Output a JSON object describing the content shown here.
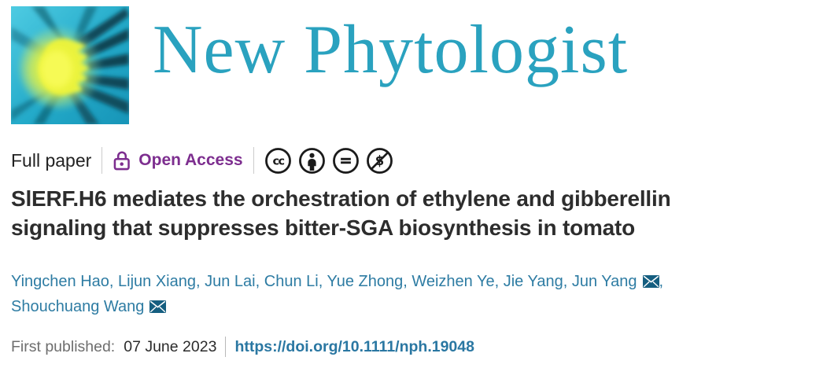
{
  "journal": {
    "name": "New Phytologist"
  },
  "colors": {
    "brand_teal": "#2aa2bf",
    "open_access_purple": "#7d2e8f",
    "link_blue": "#2a77a2",
    "title_dark": "#2d2d2d",
    "label_gray": "#6e6e6e",
    "license_icon_black": "#1b1b1b"
  },
  "meta": {
    "article_type": "Full paper",
    "open_access_label": "Open Access",
    "license_icons": [
      {
        "name": "cc-icon",
        "symbol": "cc"
      },
      {
        "name": "cc-by-icon",
        "symbol": "person"
      },
      {
        "name": "cc-nd-icon",
        "symbol": "equals"
      },
      {
        "name": "cc-nc-icon",
        "symbol": "dollar-slash"
      }
    ]
  },
  "title": {
    "lines": [
      "SlERF.H6 mediates the orchestration of ethylene and gibberellin",
      "signaling that suppresses bitter-SGA biosynthesis in tomato"
    ]
  },
  "authors": [
    {
      "name": "Yingchen Hao",
      "email": false
    },
    {
      "name": "Lijun Xiang",
      "email": false
    },
    {
      "name": "Jun Lai",
      "email": false
    },
    {
      "name": "Chun Li",
      "email": false
    },
    {
      "name": "Yue Zhong",
      "email": false
    },
    {
      "name": "Weizhen Ye",
      "email": false
    },
    {
      "name": "Jie Yang",
      "email": false
    },
    {
      "name": "Jun Yang",
      "email": true
    },
    {
      "name": "Shouchuang Wang",
      "email": true
    }
  ],
  "publication": {
    "label": "First published:",
    "date": "07 June 2023",
    "doi": "https://doi.org/10.1111/nph.19048"
  }
}
